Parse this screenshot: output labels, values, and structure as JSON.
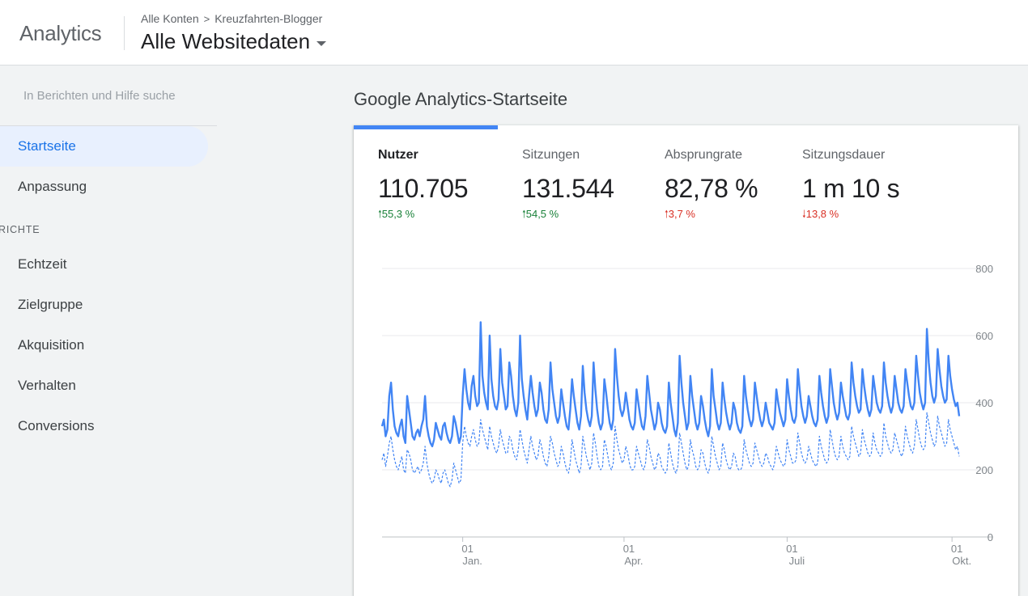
{
  "header": {
    "app_name": "Analytics",
    "breadcrumb": [
      "Alle Konten",
      "Kreuzfahrten-Blogger"
    ],
    "breadcrumb_separator": ">",
    "property": "Alle Websitedaten"
  },
  "sidebar": {
    "search_placeholder": "In Berichten und Hilfe suche",
    "home_label": "Startseite",
    "customization_label": "Anpassung",
    "section_label": "RICHTE",
    "reports": [
      {
        "label": "Echtzeit"
      },
      {
        "label": "Zielgruppe"
      },
      {
        "label": "Akquisition"
      },
      {
        "label": "Verhalten"
      },
      {
        "label": "Conversions"
      }
    ]
  },
  "main": {
    "title": "Google Analytics-Startseite",
    "metrics": [
      {
        "label": "Nutzer",
        "value": "110.705",
        "delta": "55,3 %",
        "direction": "up",
        "status": "good"
      },
      {
        "label": "Sitzungen",
        "value": "131.544",
        "delta": "54,5 %",
        "direction": "up",
        "status": "good"
      },
      {
        "label": "Absprungrate",
        "value": "82,78 %",
        "delta": "3,7 %",
        "direction": "up",
        "status": "bad"
      },
      {
        "label": "Sitzungsdauer",
        "value": "1 m 10 s",
        "delta": "13,8 %",
        "direction": "down",
        "status": "bad"
      }
    ]
  },
  "colors": {
    "accent": "#1a73e8",
    "series_line": "#4285f4",
    "positive": "#188038",
    "negative": "#d93025"
  },
  "chart_data": {
    "type": "line",
    "ylim": [
      0,
      800
    ],
    "y_ticks": [
      0,
      200,
      400,
      600,
      800
    ],
    "x_ticks": [
      {
        "day": "01",
        "month": "Jan.",
        "index": 45
      },
      {
        "day": "01",
        "month": "Apr.",
        "index": 135
      },
      {
        "day": "01",
        "month": "Juli",
        "index": 226
      },
      {
        "day": "01",
        "month": "Okt.",
        "index": 318
      }
    ],
    "grid": true,
    "series": [
      {
        "style": "solid",
        "values": [
          330,
          350,
          300,
          320,
          420,
          460,
          380,
          330,
          310,
          300,
          330,
          350,
          300,
          280,
          420,
          380,
          340,
          300,
          290,
          310,
          320,
          300,
          330,
          350,
          420,
          330,
          300,
          280,
          270,
          290,
          340,
          320,
          300,
          290,
          330,
          340,
          310,
          290,
          280,
          300,
          360,
          340,
          310,
          280,
          300,
          420,
          500,
          440,
          400,
          380,
          450,
          480,
          420,
          390,
          400,
          640,
          480,
          430,
          400,
          380,
          600,
          470,
          420,
          390,
          380,
          410,
          560,
          460,
          420,
          380,
          390,
          520,
          480,
          420,
          380,
          360,
          400,
          600,
          470,
          420,
          380,
          350,
          420,
          480,
          430,
          390,
          360,
          380,
          460,
          430,
          380,
          350,
          340,
          380,
          520,
          440,
          400,
          360,
          340,
          360,
          440,
          400,
          360,
          330,
          320,
          380,
          470,
          420,
          380,
          340,
          320,
          360,
          510,
          430,
          380,
          350,
          330,
          360,
          520,
          440,
          380,
          340,
          320,
          340,
          470,
          430,
          380,
          340,
          320,
          350,
          560,
          480,
          420,
          380,
          360,
          380,
          430,
          390,
          350,
          330,
          320,
          340,
          440,
          400,
          360,
          330,
          320,
          360,
          480,
          430,
          380,
          350,
          320,
          340,
          400,
          380,
          340,
          320,
          310,
          330,
          460,
          400,
          360,
          320,
          300,
          340,
          540,
          460,
          400,
          360,
          320,
          340,
          480,
          420,
          380,
          340,
          320,
          340,
          420,
          390,
          350,
          320,
          300,
          330,
          500,
          420,
          380,
          340,
          320,
          340,
          460,
          410,
          370,
          340,
          320,
          340,
          400,
          380,
          340,
          320,
          310,
          330,
          480,
          420,
          380,
          350,
          330,
          350,
          460,
          420,
          380,
          350,
          330,
          350,
          400,
          370,
          340,
          330,
          320,
          340,
          440,
          400,
          370,
          350,
          330,
          350,
          470,
          420,
          380,
          350,
          340,
          360,
          500,
          440,
          390,
          360,
          340,
          360,
          420,
          390,
          360,
          340,
          330,
          350,
          480,
          430,
          390,
          360,
          340,
          360,
          500,
          450,
          400,
          370,
          350,
          370,
          460,
          420,
          390,
          360,
          350,
          370,
          520,
          460,
          420,
          390,
          370,
          380,
          500,
          450,
          410,
          380,
          360,
          380,
          480,
          440,
          400,
          380,
          370,
          390,
          520,
          460,
          420,
          390,
          370,
          390,
          480,
          440,
          400,
          380,
          370,
          390,
          500,
          460,
          420,
          390,
          380,
          400,
          540,
          480,
          430,
          400,
          380,
          400,
          620,
          520,
          460,
          420,
          400,
          420,
          560,
          500,
          450,
          420,
          400,
          410,
          540,
          480,
          440,
          410,
          390,
          400,
          360
        ]
      },
      {
        "style": "dashed",
        "values": [
          230,
          250,
          210,
          240,
          280,
          300,
          260,
          230,
          210,
          200,
          220,
          240,
          200,
          190,
          260,
          250,
          230,
          200,
          190,
          200,
          210,
          190,
          200,
          220,
          270,
          220,
          190,
          170,
          160,
          170,
          200,
          190,
          170,
          160,
          190,
          200,
          180,
          160,
          150,
          170,
          220,
          200,
          180,
          160,
          170,
          280,
          330,
          300,
          280,
          270,
          300,
          320,
          290,
          270,
          280,
          350,
          320,
          300,
          280,
          260,
          330,
          300,
          280,
          260,
          250,
          270,
          320,
          290,
          270,
          250,
          250,
          300,
          290,
          260,
          240,
          230,
          260,
          320,
          290,
          260,
          240,
          220,
          260,
          300,
          270,
          250,
          230,
          240,
          290,
          270,
          240,
          220,
          210,
          240,
          300,
          280,
          250,
          230,
          210,
          220,
          270,
          250,
          220,
          200,
          190,
          220,
          290,
          260,
          230,
          210,
          190,
          210,
          300,
          270,
          240,
          220,
          200,
          220,
          310,
          280,
          240,
          210,
          200,
          210,
          290,
          270,
          240,
          210,
          200,
          220,
          330,
          290,
          260,
          240,
          220,
          230,
          270,
          250,
          220,
          200,
          200,
          210,
          270,
          250,
          230,
          210,
          200,
          220,
          290,
          270,
          240,
          220,
          200,
          210,
          250,
          240,
          210,
          200,
          190,
          200,
          280,
          250,
          220,
          200,
          190,
          210,
          310,
          280,
          250,
          220,
          200,
          210,
          290,
          260,
          240,
          210,
          200,
          210,
          260,
          250,
          220,
          200,
          190,
          210,
          300,
          270,
          240,
          220,
          200,
          210,
          280,
          260,
          230,
          210,
          200,
          210,
          250,
          240,
          210,
          200,
          200,
          210,
          290,
          260,
          240,
          220,
          210,
          220,
          280,
          260,
          240,
          220,
          210,
          220,
          250,
          240,
          220,
          210,
          200,
          220,
          270,
          250,
          230,
          220,
          210,
          220,
          290,
          260,
          240,
          220,
          220,
          230,
          310,
          280,
          250,
          230,
          220,
          230,
          270,
          250,
          230,
          220,
          210,
          220,
          300,
          270,
          250,
          230,
          220,
          230,
          320,
          290,
          260,
          240,
          230,
          240,
          300,
          270,
          250,
          240,
          230,
          240,
          330,
          300,
          280,
          260,
          240,
          250,
          320,
          290,
          270,
          250,
          240,
          250,
          310,
          280,
          260,
          250,
          240,
          250,
          340,
          300,
          280,
          260,
          250,
          260,
          310,
          290,
          270,
          250,
          240,
          260,
          330,
          300,
          280,
          260,
          250,
          270,
          350,
          320,
          290,
          270,
          260,
          270,
          370,
          340,
          310,
          290,
          270,
          280,
          360,
          330,
          310,
          290,
          270,
          280,
          350,
          320,
          300,
          280,
          260,
          270,
          240
        ]
      }
    ]
  }
}
